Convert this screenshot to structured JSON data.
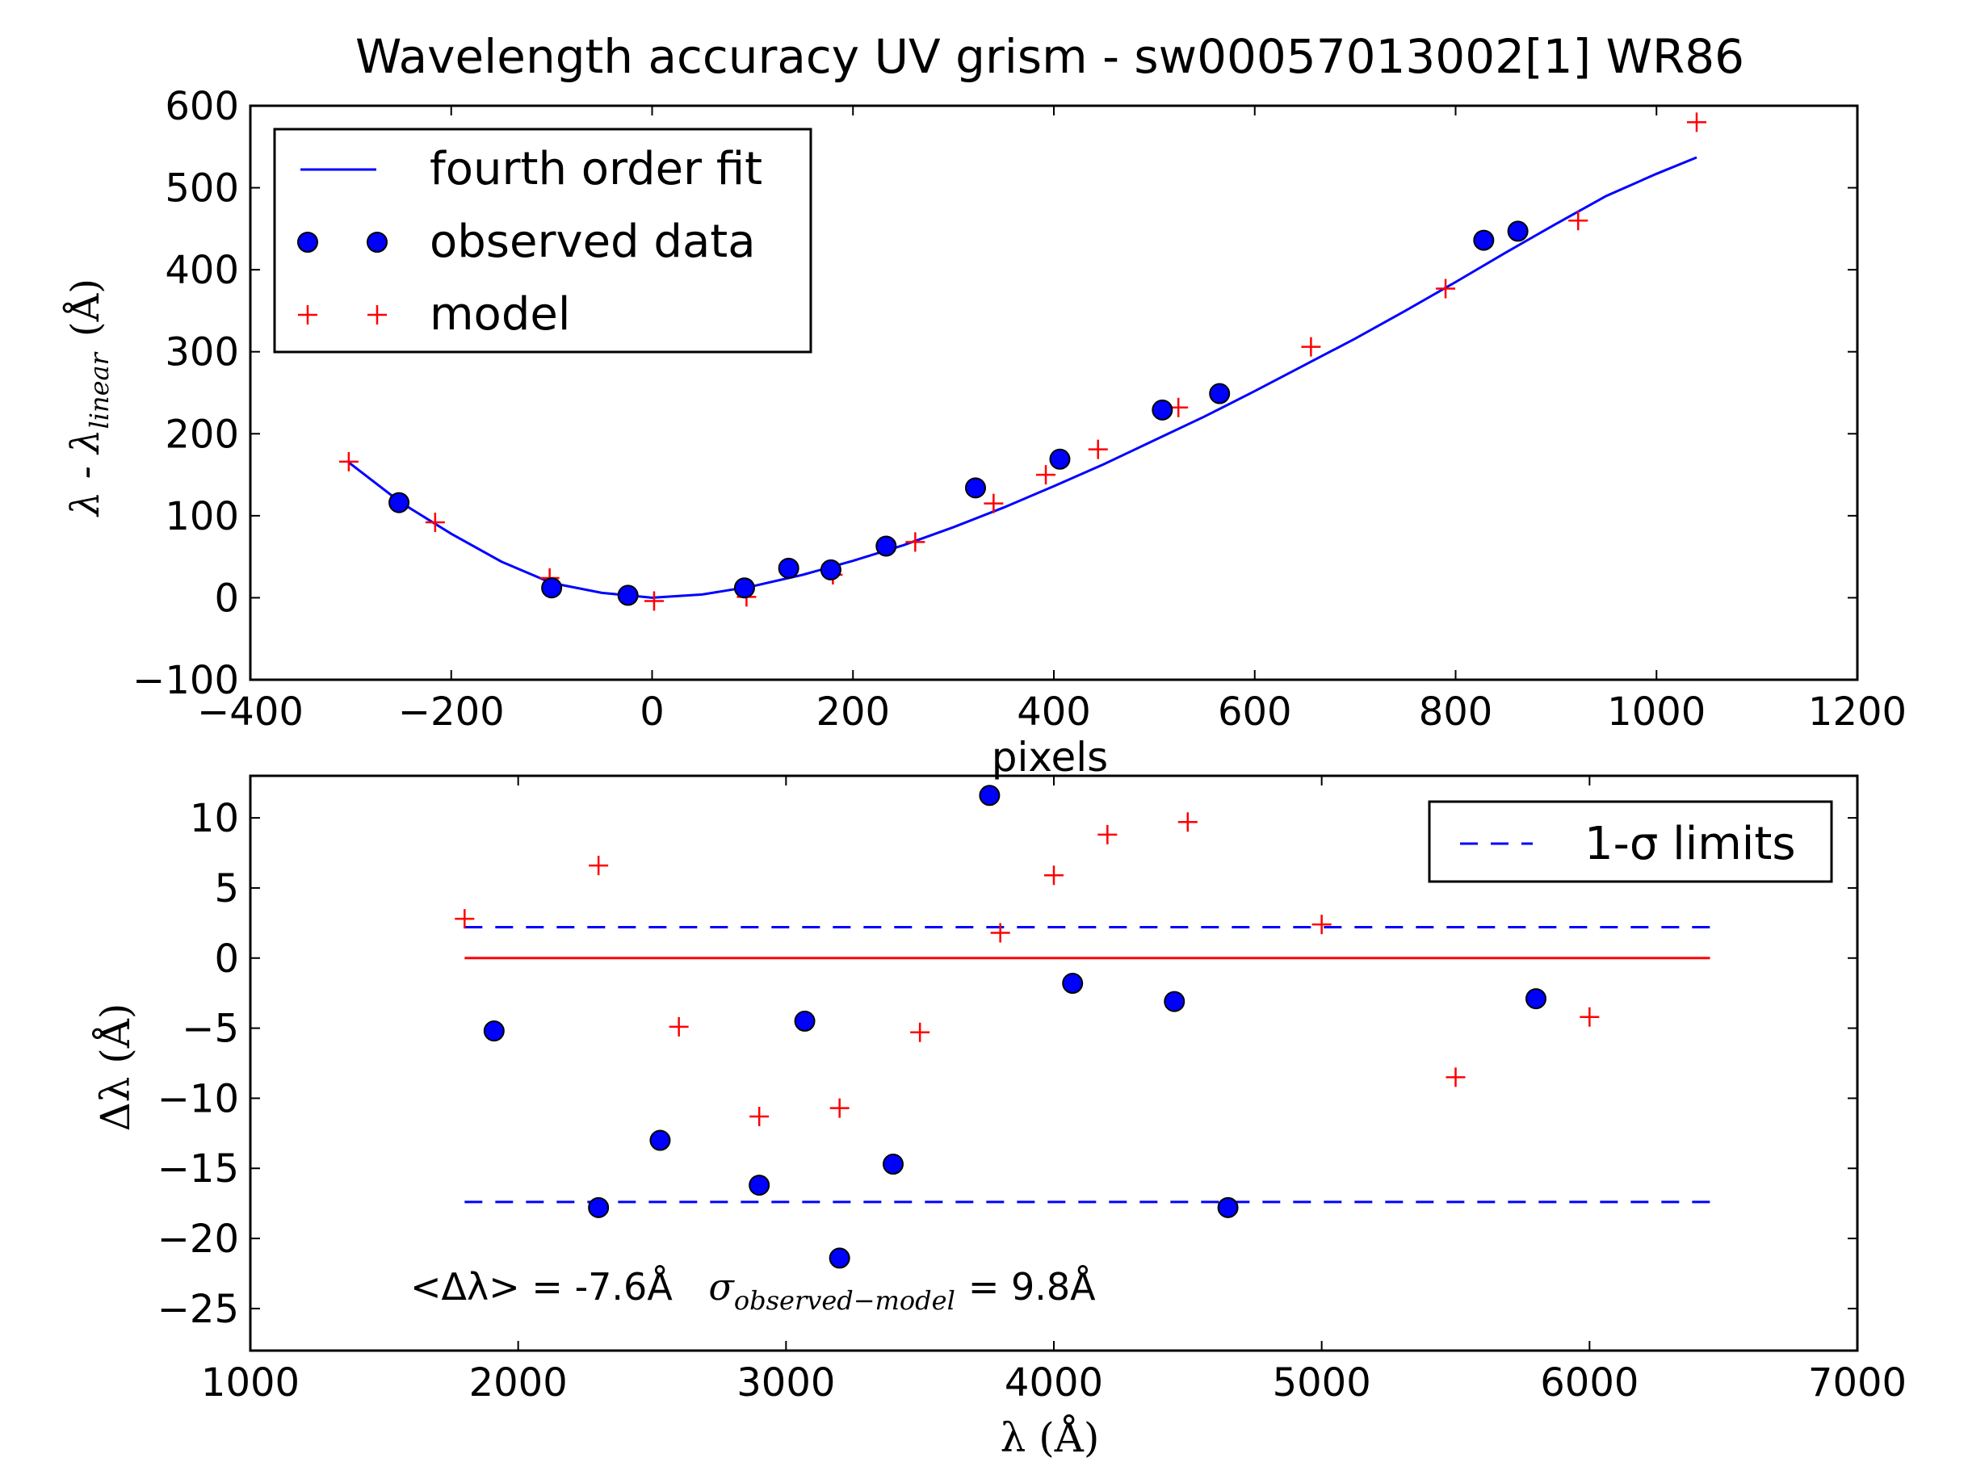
{
  "title": "Wavelength accuracy UV grism - sw00057013002[1] WR86",
  "colors": {
    "fit": "#0000ff",
    "observed": "#0000ff",
    "model": "#ff0000",
    "zero_line": "#ff0000",
    "limits": "#0000ff"
  },
  "chart_data": [
    {
      "type": "scatter",
      "xlabel": "pixels",
      "ylabel_text": "λ - λ",
      "ylabel_sub": "linear",
      "ylabel_unit": "(Å)",
      "xlim": [
        -400,
        1200
      ],
      "ylim": [
        -100,
        600
      ],
      "xticks": [
        -400,
        -200,
        0,
        200,
        400,
        600,
        800,
        1000,
        1200
      ],
      "yticks": [
        -100,
        0,
        100,
        200,
        300,
        400,
        500,
        600
      ],
      "xtick_labels": [
        "−400",
        "−200",
        "0",
        "200",
        "400",
        "600",
        "800",
        "1000",
        "1200"
      ],
      "ytick_labels": [
        "−100",
        "0",
        "100",
        "200",
        "300",
        "400",
        "500",
        "600"
      ],
      "legend_position": "top-left",
      "series": [
        {
          "name": "fourth order fit",
          "kind": "line",
          "x": [
            -302,
            -250,
            -200,
            -150,
            -100,
            -50,
            0,
            50,
            100,
            150,
            200,
            250,
            300,
            350,
            400,
            450,
            500,
            550,
            600,
            650,
            700,
            750,
            800,
            850,
            900,
            950,
            1000,
            1040
          ],
          "y": [
            165,
            116,
            78,
            44,
            18,
            6,
            0,
            4,
            14,
            28,
            45,
            64,
            86,
            110,
            136,
            163,
            192,
            221,
            252,
            284,
            316,
            350,
            385,
            421,
            456,
            490,
            517,
            537
          ]
        },
        {
          "name": "observed data",
          "kind": "circle",
          "x": [
            -252,
            -100,
            -24,
            92,
            136,
            178,
            233,
            322,
            406,
            508,
            565,
            828,
            862
          ],
          "y": [
            116,
            12,
            3,
            12,
            36,
            34,
            63,
            134,
            169,
            229,
            249,
            436,
            447
          ]
        },
        {
          "name": "model",
          "kind": "plus",
          "x": [
            -302,
            -216,
            -102,
            2,
            94,
            180,
            262,
            340,
            392,
            444,
            524,
            656,
            790,
            922,
            1040
          ],
          "y": [
            166,
            92,
            24,
            -4,
            1,
            28,
            68,
            115,
            150,
            181,
            232,
            306,
            377,
            460,
            580
          ]
        }
      ]
    },
    {
      "type": "scatter",
      "xlabel": "λ (Å)",
      "ylabel": "Δλ (Å)",
      "xlim": [
        1000,
        7000
      ],
      "ylim": [
        -28,
        13
      ],
      "xticks": [
        1000,
        2000,
        3000,
        4000,
        5000,
        6000,
        7000
      ],
      "yticks": [
        -25,
        -20,
        -15,
        -10,
        -5,
        0,
        5,
        10
      ],
      "xtick_labels": [
        "1000",
        "2000",
        "3000",
        "4000",
        "5000",
        "6000",
        "7000"
      ],
      "ytick_labels": [
        "−25",
        "−20",
        "−15",
        "−10",
        "−5",
        "0",
        "5",
        "10"
      ],
      "legend_position": "top-right",
      "annotation_mean": "<Δλ> = -7.6Å",
      "annotation_sigma_symbol": "σ",
      "annotation_sigma_sub": "observed−model",
      "annotation_sigma_value": "= 9.8Å",
      "zero_line": {
        "x": [
          1800,
          6450
        ],
        "y": 0
      },
      "series": [
        {
          "name": "1-σ limits",
          "legend_label": "1-σ limits",
          "kind": "dashed",
          "x_range": [
            1800,
            6450
          ],
          "y_values": [
            2.2,
            -17.4
          ]
        },
        {
          "name": "observed",
          "kind": "circle",
          "x": [
            1910,
            2300,
            2530,
            2900,
            3070,
            3200,
            3400,
            3760,
            4070,
            4450,
            4650,
            5800
          ],
          "y": [
            -5.2,
            -17.8,
            -13.0,
            -16.2,
            -4.5,
            -21.4,
            -14.7,
            11.6,
            -1.8,
            -3.1,
            -17.8,
            -2.9
          ]
        },
        {
          "name": "model",
          "kind": "plus",
          "x": [
            1800,
            2300,
            2600,
            2900,
            3200,
            3500,
            3800,
            4000,
            4200,
            4500,
            5000,
            5500,
            6000
          ],
          "y": [
            2.8,
            6.6,
            -4.9,
            -11.3,
            -10.7,
            -5.3,
            1.8,
            5.9,
            8.8,
            9.7,
            2.4,
            -8.5,
            -4.2
          ]
        }
      ]
    }
  ]
}
